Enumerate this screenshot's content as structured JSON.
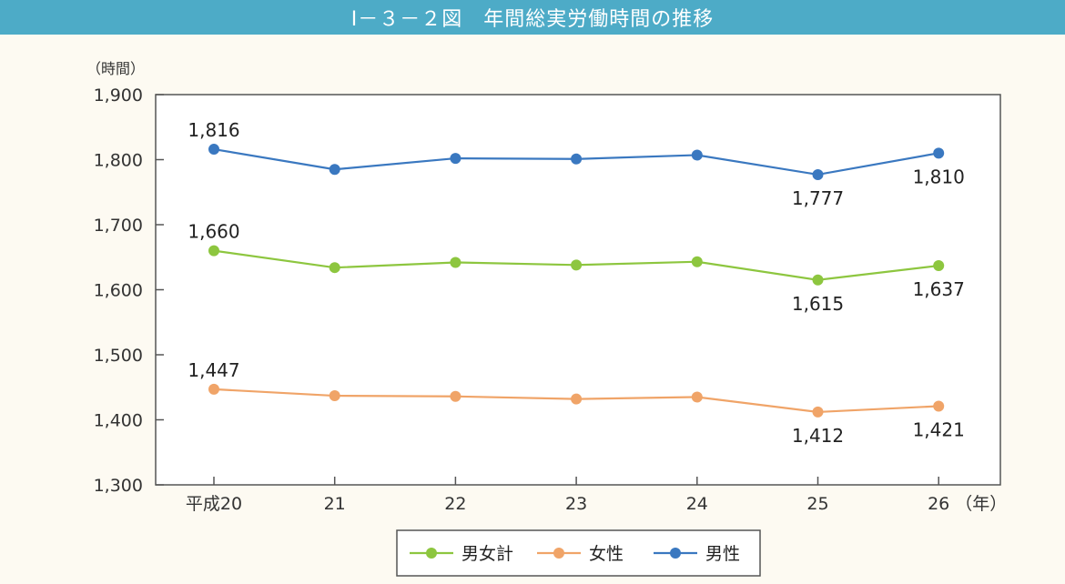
{
  "figure": {
    "number": "Ⅰ－３－２図",
    "title": "年間総実労働時間の推移"
  },
  "chart_data": {
    "type": "line",
    "x": [
      "平成20",
      "21",
      "22",
      "23",
      "24",
      "25",
      "26"
    ],
    "x_unit": "（年）",
    "y_unit": "（時間）",
    "ylim": [
      1300,
      1900
    ],
    "yticks": [
      1300,
      1400,
      1500,
      1600,
      1700,
      1800,
      1900
    ],
    "ytick_labels": [
      "1,300",
      "1,400",
      "1,500",
      "1,600",
      "1,700",
      "1,800",
      "1,900"
    ],
    "grid": false,
    "legend_position": "bottom-center",
    "series": [
      {
        "name": "男女計",
        "color": "#8dc63f",
        "values": [
          1660,
          1634,
          1642,
          1638,
          1643,
          1615,
          1637
        ],
        "labels": [
          {
            "index": 0,
            "text": "1,660",
            "position": "above"
          },
          {
            "index": 5,
            "text": "1,615",
            "position": "below"
          },
          {
            "index": 6,
            "text": "1,637",
            "position": "below"
          }
        ]
      },
      {
        "name": "女性",
        "color": "#f0a468",
        "values": [
          1447,
          1437,
          1436,
          1432,
          1435,
          1412,
          1421
        ],
        "labels": [
          {
            "index": 0,
            "text": "1,447",
            "position": "above"
          },
          {
            "index": 5,
            "text": "1,412",
            "position": "below"
          },
          {
            "index": 6,
            "text": "1,421",
            "position": "below"
          }
        ]
      },
      {
        "name": "男性",
        "color": "#3a78c0",
        "values": [
          1816,
          1785,
          1802,
          1801,
          1807,
          1777,
          1810
        ],
        "labels": [
          {
            "index": 0,
            "text": "1,816",
            "position": "above"
          },
          {
            "index": 5,
            "text": "1,777",
            "position": "below"
          },
          {
            "index": 6,
            "text": "1,810",
            "position": "below"
          }
        ]
      }
    ]
  }
}
